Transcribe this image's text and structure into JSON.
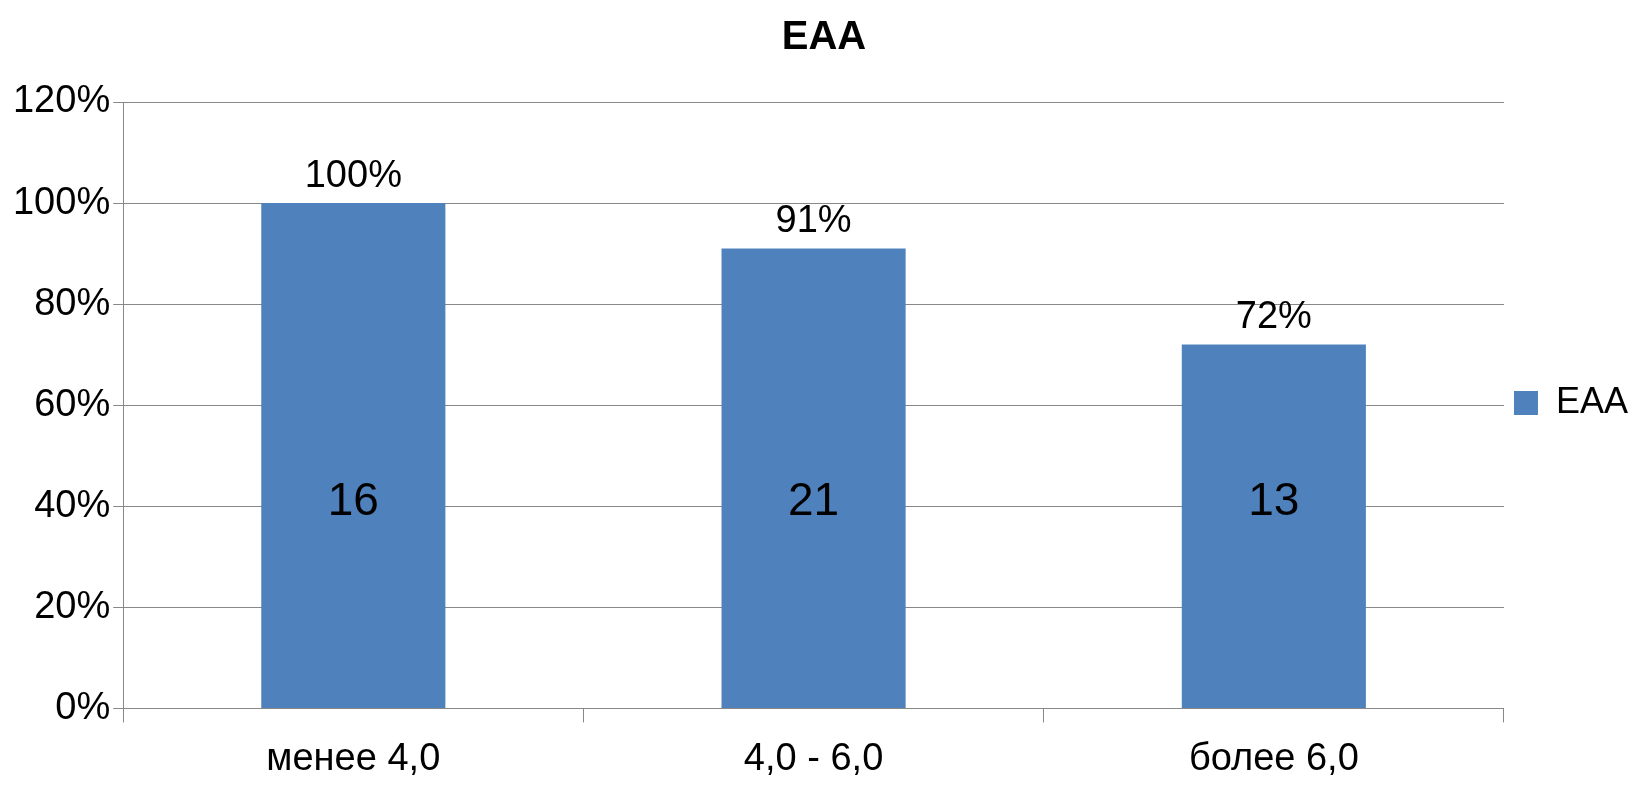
{
  "chart_data": {
    "type": "bar",
    "title": "EAA",
    "categories": [
      "менее 4,0",
      "4,0 - 6,0",
      "более 6,0"
    ],
    "series": [
      {
        "name": "EAA",
        "color": "#4f81bd",
        "values": [
          100,
          91,
          72
        ],
        "value_labels": [
          "100%",
          "91%",
          "72%"
        ]
      }
    ],
    "ylim": [
      0,
      120
    ],
    "yticks": [
      {
        "value": 0,
        "label": "0%"
      },
      {
        "value": 20,
        "label": "20%"
      },
      {
        "value": 40,
        "label": "40%"
      },
      {
        "value": 60,
        "label": "60%"
      },
      {
        "value": 80,
        "label": "80%"
      },
      {
        "value": 100,
        "label": "100%"
      },
      {
        "value": 120,
        "label": "120%"
      }
    ],
    "grid": "y",
    "legend": "right",
    "annotations": [
      "16",
      "21",
      "13"
    ]
  }
}
